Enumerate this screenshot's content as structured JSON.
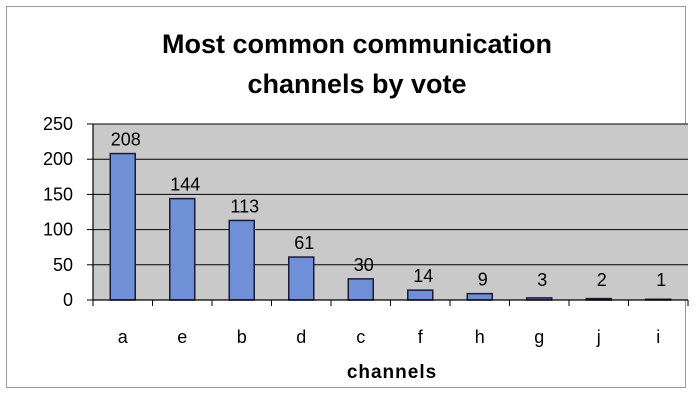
{
  "chart_data": {
    "type": "bar",
    "title_lines": [
      "Most common communication",
      "channels by vote"
    ],
    "xlabel": "channels",
    "ylabel": "",
    "categories": [
      "a",
      "e",
      "b",
      "d",
      "c",
      "f",
      "h",
      "g",
      "j",
      "i"
    ],
    "values": [
      208,
      144,
      113,
      61,
      30,
      14,
      9,
      3,
      2,
      1
    ],
    "ylim": [
      0,
      250
    ],
    "yticks": [
      0,
      50,
      100,
      150,
      200,
      250
    ],
    "grid": true,
    "legend": "none",
    "colors": {
      "bar": "#6f8fd6",
      "bar_stroke": "#1a1a3a",
      "plot_bg": "#c9c9c9",
      "grid": "#000000"
    }
  }
}
